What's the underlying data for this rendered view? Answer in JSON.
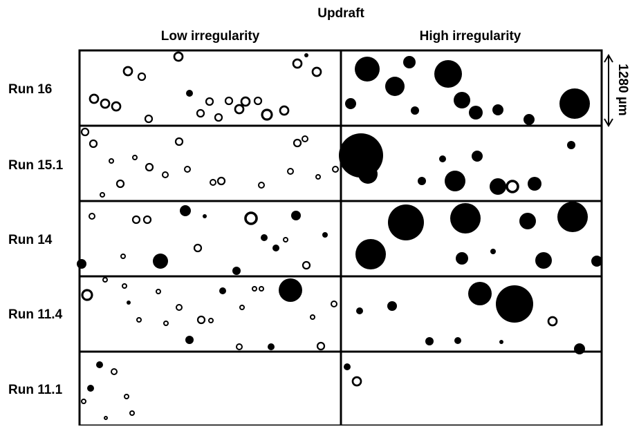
{
  "header": {
    "title": "Updraft",
    "columns": [
      "Low irregularity",
      "High irregularity"
    ]
  },
  "rows": [
    "Run 16",
    "Run 15.1",
    "Run 14",
    "Run 11.4",
    "Run 11.1"
  ],
  "scale_bar": "1280 µm"
}
